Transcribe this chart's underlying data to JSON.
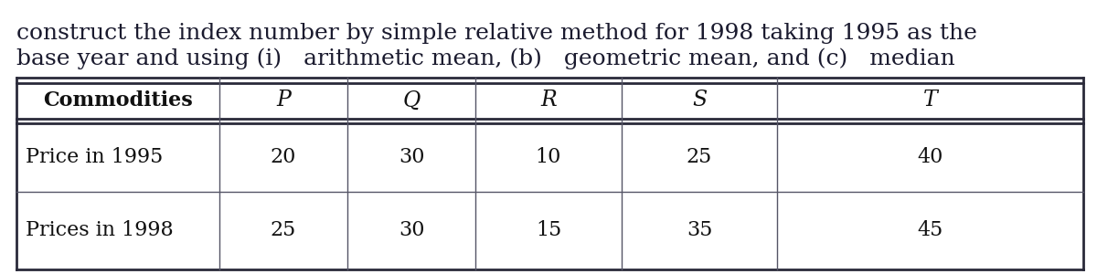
{
  "title_line1": "construct the index number by simple relative method for 1998 taking 1995 as the",
  "title_line2": "base year and using (i)   arithmetic mean, (b)   geometric mean, and (c)   median",
  "header": [
    "Commodities",
    "P",
    "Q",
    "R",
    "S",
    "T"
  ],
  "row1_label": "Price in 1995",
  "row2_label": "Prices in 1998",
  "row1_values": [
    "20",
    "30",
    "10",
    "25",
    "40"
  ],
  "row2_values": [
    "25",
    "30",
    "15",
    "35",
    "45"
  ],
  "bg_color": "#ffffff",
  "table_bg": "#ffffff",
  "title_fontsize": 18,
  "header_fontsize": 16,
  "cell_fontsize": 16,
  "title_color": "#1a1a2e",
  "cell_color": "#111111"
}
